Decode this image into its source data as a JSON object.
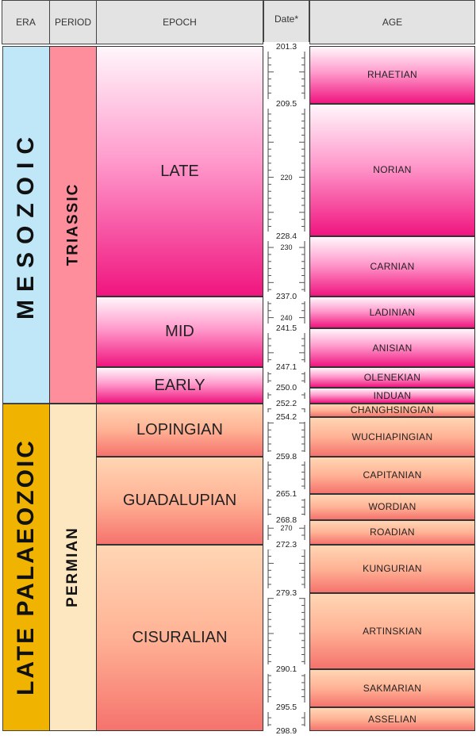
{
  "headers": {
    "era": "ERA",
    "period": "PERIOD",
    "epoch": "EPOCH",
    "date": "Date*",
    "age": "AGE"
  },
  "eras": [
    {
      "name": "MESOZOIC",
      "color": "#bfe7f7"
    },
    {
      "name": "LATE PALAEOZOIC",
      "color": "#f0b400"
    }
  ],
  "periods": [
    {
      "name": "TRIASSIC",
      "color": "#ff8e9c"
    },
    {
      "name": "PERMIAN",
      "color": "#fde7c0"
    }
  ],
  "epochs": [
    {
      "name": "LATE",
      "start": 201.3,
      "end": 237.0,
      "style": "tri"
    },
    {
      "name": "MID",
      "start": 237.0,
      "end": 247.1,
      "style": "tri"
    },
    {
      "name": "EARLY",
      "start": 247.1,
      "end": 252.2,
      "style": "tri"
    },
    {
      "name": "LOPINGIAN",
      "start": 252.2,
      "end": 259.8,
      "style": "perm"
    },
    {
      "name": "GUADALUPIAN",
      "start": 259.8,
      "end": 272.3,
      "style": "perm"
    },
    {
      "name": "CISURALIAN",
      "start": 272.3,
      "end": 298.9,
      "style": "perm"
    }
  ],
  "ages": [
    {
      "name": "RHAETIAN",
      "start": 201.3,
      "end": 209.5,
      "style": "tri"
    },
    {
      "name": "NORIAN",
      "start": 209.5,
      "end": 228.4,
      "style": "tri"
    },
    {
      "name": "CARNIAN",
      "start": 228.4,
      "end": 237.0,
      "style": "tri"
    },
    {
      "name": "LADINIAN",
      "start": 237.0,
      "end": 241.5,
      "style": "tri"
    },
    {
      "name": "ANISIAN",
      "start": 241.5,
      "end": 247.1,
      "style": "tri"
    },
    {
      "name": "OLENEKIAN",
      "start": 247.1,
      "end": 250.0,
      "style": "tri"
    },
    {
      "name": "INDUAN",
      "start": 250.0,
      "end": 252.2,
      "style": "tri"
    },
    {
      "name": "CHANGHSINGIAN",
      "start": 252.2,
      "end": 254.2,
      "style": "perm"
    },
    {
      "name": "WUCHIAPINGIAN",
      "start": 254.2,
      "end": 259.8,
      "style": "perm"
    },
    {
      "name": "CAPITANIAN",
      "start": 259.8,
      "end": 265.1,
      "style": "perm"
    },
    {
      "name": "WORDIAN",
      "start": 265.1,
      "end": 268.8,
      "style": "perm"
    },
    {
      "name": "ROADIAN",
      "start": 268.8,
      "end": 272.3,
      "style": "perm"
    },
    {
      "name": "KUNGURIAN",
      "start": 272.3,
      "end": 279.3,
      "style": "perm"
    },
    {
      "name": "ARTINSKIAN",
      "start": 279.3,
      "end": 290.1,
      "style": "perm"
    },
    {
      "name": "SAKMARIAN",
      "start": 290.1,
      "end": 295.5,
      "style": "perm"
    },
    {
      "name": "ASSELIAN",
      "start": 295.5,
      "end": 298.9,
      "style": "perm"
    }
  ],
  "date_labels": [
    {
      "text": "201.3",
      "value": 201.3
    },
    {
      "text": "209.5",
      "value": 209.5
    },
    {
      "text": "220",
      "value": 220,
      "minor": true
    },
    {
      "text": "228.4",
      "value": 228.4
    },
    {
      "text": "230",
      "value": 230,
      "minor": true
    },
    {
      "text": "237.0",
      "value": 237.0
    },
    {
      "text": "240",
      "value": 240,
      "minor": true
    },
    {
      "text": "241.5",
      "value": 241.5
    },
    {
      "text": "247.1",
      "value": 247.1
    },
    {
      "text": "250.0",
      "value": 250.0
    },
    {
      "text": "252.2",
      "value": 252.2
    },
    {
      "text": "254.2",
      "value": 254.2
    },
    {
      "text": "259.8",
      "value": 259.8
    },
    {
      "text": "265.1",
      "value": 265.1
    },
    {
      "text": "268.8",
      "value": 268.8
    },
    {
      "text": "270",
      "value": 270,
      "minor": true
    },
    {
      "text": "272.3",
      "value": 272.3
    },
    {
      "text": "279.3",
      "value": 279.3
    },
    {
      "text": "290.1",
      "value": 290.1
    },
    {
      "text": "295.5",
      "value": 295.5
    },
    {
      "text": "298.9",
      "value": 298.9
    }
  ],
  "axis": {
    "min": 201.3,
    "max": 298.9,
    "tick_step_ma": 1
  }
}
